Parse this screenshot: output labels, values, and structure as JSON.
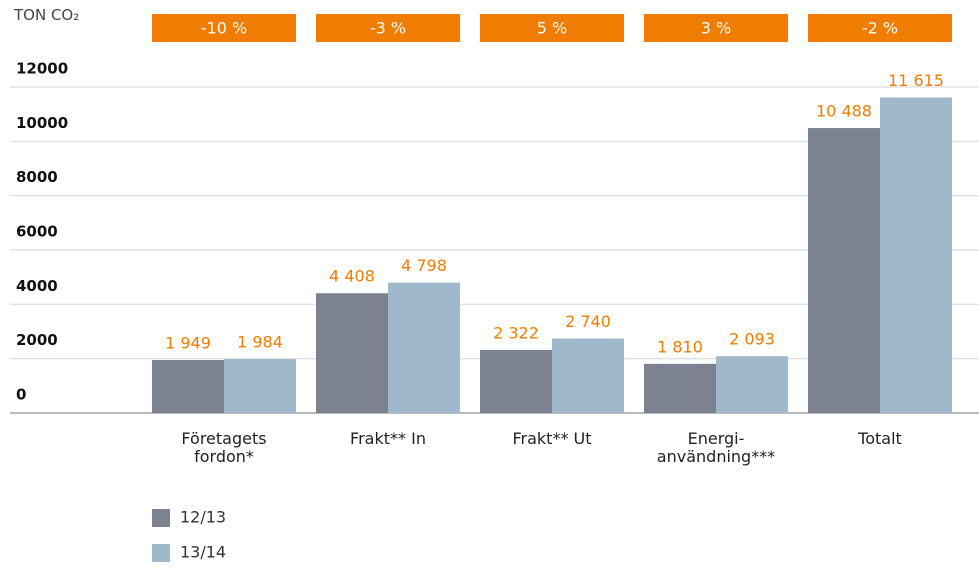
{
  "chart_data": {
    "type": "bar",
    "ylabel": "TON CO₂",
    "categories": [
      "Företagets fordon*",
      "Frakt** In",
      "Frakt** Ut",
      "Energi-användning***",
      "Totalt"
    ],
    "annotations": [
      "-10 %",
      "-3 %",
      "5 %",
      "3 %",
      "-2 %"
    ],
    "series": [
      {
        "name": "12/13",
        "color": "#7d8291",
        "values": [
          1949,
          4408,
          2322,
          1810,
          10488
        ],
        "value_labels": [
          "1 949",
          "4 408",
          "2 322",
          "1 810",
          "10 488"
        ]
      },
      {
        "name": "13/14",
        "color": "#9fb8cc",
        "values": [
          1984,
          4798,
          2740,
          2093,
          11615
        ],
        "value_labels": [
          "1 984",
          "4 798",
          "2 740",
          "2 093",
          "11 615"
        ]
      }
    ],
    "ylim": [
      0,
      12000
    ],
    "yticks": [
      0,
      2000,
      4000,
      6000,
      8000,
      10000,
      12000
    ],
    "grid": true
  }
}
